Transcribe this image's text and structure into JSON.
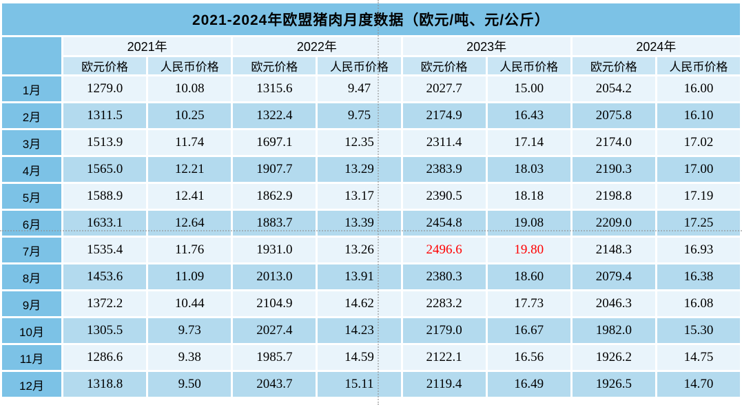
{
  "title": "2021-2024年欧盟猪肉月度数据（欧元/吨、元/公斤）",
  "colors": {
    "header_blue": "#7CC2E6",
    "year_row_bg": "#EAF4FB",
    "sub_header_bg": "#C9E5F4",
    "row_odd_bg": "#E9F4FB",
    "row_even_bg": "#B3DAEE",
    "highlight_red": "#FF0000",
    "text": "#000000"
  },
  "chart_data": {
    "type": "table",
    "title": "2021-2024年欧盟猪肉月度数据（欧元/吨、元/公斤）",
    "units": "欧元/吨、元/公斤",
    "column_groups": [
      "2021年",
      "2022年",
      "2023年",
      "2024年"
    ],
    "sub_columns": [
      "欧元价格",
      "人民币价格"
    ],
    "sub_headers": [
      "欧元价格",
      "人民币价格",
      "欧元价格",
      "人民币价格",
      "欧元价格",
      "人民币价格",
      "欧元价格",
      "人民币价格"
    ],
    "highlight_note": "2023年7月 values shown in red",
    "rows": [
      {
        "month": "1月",
        "values": [
          "1279.0",
          "10.08",
          "1315.6",
          "9.47",
          "2027.7",
          "15.00",
          "2054.2",
          "16.00"
        ]
      },
      {
        "month": "2月",
        "values": [
          "1311.5",
          "10.25",
          "1322.4",
          "9.75",
          "2174.9",
          "16.43",
          "2075.8",
          "16.10"
        ]
      },
      {
        "month": "3月",
        "values": [
          "1513.9",
          "11.74",
          "1697.1",
          "12.35",
          "2311.4",
          "17.14",
          "2174.0",
          "17.02"
        ]
      },
      {
        "month": "4月",
        "values": [
          "1565.0",
          "12.21",
          "1907.7",
          "13.29",
          "2383.9",
          "18.03",
          "2190.3",
          "17.00"
        ]
      },
      {
        "month": "5月",
        "values": [
          "1588.9",
          "12.41",
          "1862.9",
          "13.17",
          "2390.5",
          "18.18",
          "2198.8",
          "17.19"
        ]
      },
      {
        "month": "6月",
        "values": [
          "1633.1",
          "12.64",
          "1883.7",
          "13.39",
          "2454.8",
          "19.08",
          "2209.0",
          "17.25"
        ]
      },
      {
        "month": "7月",
        "values": [
          "1535.4",
          "11.76",
          "1931.0",
          "13.26",
          "2496.6",
          "19.80",
          "2148.3",
          "16.93"
        ],
        "red_indices": [
          4,
          5
        ]
      },
      {
        "month": "8月",
        "values": [
          "1453.6",
          "11.09",
          "2013.0",
          "13.91",
          "2380.3",
          "18.60",
          "2079.4",
          "16.38"
        ]
      },
      {
        "month": "9月",
        "values": [
          "1372.2",
          "10.44",
          "2104.9",
          "14.62",
          "2283.2",
          "17.73",
          "2046.3",
          "16.08"
        ]
      },
      {
        "month": "10月",
        "values": [
          "1305.5",
          "9.73",
          "2027.4",
          "14.23",
          "2179.0",
          "16.67",
          "1982.0",
          "15.30"
        ]
      },
      {
        "month": "11月",
        "values": [
          "1286.6",
          "9.38",
          "1985.7",
          "14.59",
          "2122.1",
          "16.56",
          "1926.2",
          "14.75"
        ]
      },
      {
        "month": "12月",
        "values": [
          "1318.8",
          "9.50",
          "2043.7",
          "15.11",
          "2119.4",
          "16.49",
          "1926.5",
          "14.70"
        ]
      }
    ]
  }
}
